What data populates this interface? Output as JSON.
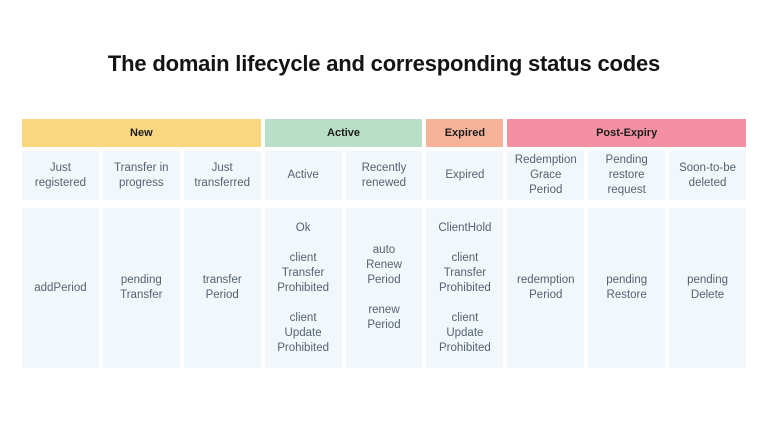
{
  "title": "The domain lifecycle and corresponding status codes",
  "colors": {
    "new_group": "#F9D781",
    "active_group": "#BADFC9",
    "expired_group": "#F6B39A",
    "post_expiry_group": "#F391A3",
    "cell_background": "#F1F7FA",
    "cell_text": "#566273",
    "header_text": "#1C1C1C"
  },
  "table": {
    "column_groups": [
      {
        "label": "New",
        "span": 3,
        "color": "#F9D781"
      },
      {
        "label": "Active",
        "span": 2,
        "color": "#BADFC9"
      },
      {
        "label": "Expired",
        "span": 1,
        "color": "#F6B39A"
      },
      {
        "label": "Post-Expiry",
        "span": 3,
        "color": "#F391A3"
      }
    ],
    "stages": [
      "Just\nregistered",
      "Transfer in\nprogress",
      "Just\ntransferred",
      "Active",
      "Recently\nrenewed",
      "Expired",
      "Redemption\nGrace\nPeriod",
      "Pending\nrestore\nrequest",
      "Soon-to-be\ndeleted"
    ],
    "status_codes": [
      [
        "addPeriod"
      ],
      [
        "pending\nTransfer"
      ],
      [
        "transfer\nPeriod"
      ],
      [
        "Ok",
        "client\nTransfer\nProhibited",
        "client\nUpdate\nProhibited"
      ],
      [
        "auto\nRenew\nPeriod",
        "renew\nPeriod"
      ],
      [
        "ClientHold",
        "client\nTransfer\nProhibited",
        "client\nUpdate\nProhibited"
      ],
      [
        "redemption\nPeriod"
      ],
      [
        "pending\nRestore"
      ],
      [
        "pending\nDelete"
      ]
    ]
  }
}
